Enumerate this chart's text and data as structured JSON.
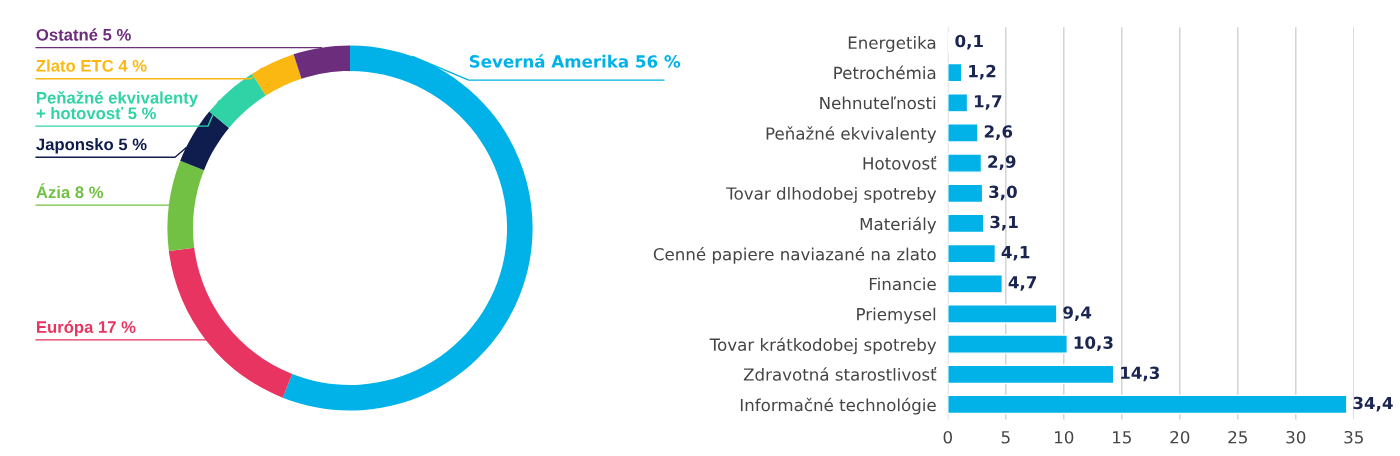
{
  "chart_data": [
    {
      "type": "donut",
      "categories": [
        "Severná Amerika",
        "Európa",
        "Ázia",
        "Japonsko",
        "Peňažné ekvivalenty\n+ hotovosť",
        "Zlato ETC",
        "Ostatné"
      ],
      "values": [
        56,
        17,
        8,
        5,
        5,
        4,
        5
      ],
      "value_labels": [
        "56 %",
        "17 %",
        "8 %",
        "5 %",
        "5 %",
        "4 %",
        "5 %"
      ],
      "colors": [
        "#00b2e7",
        "#e83460",
        "#72c144",
        "#0f1d4e",
        "#2fd3a6",
        "#fbb812",
        "#6c2d7c"
      ]
    },
    {
      "type": "bar",
      "orientation": "horizontal",
      "categories": [
        "Energetika",
        "Petrochémia",
        "Nehnuteľnosti",
        "Peňažné ekvivalenty",
        "Hotovosť",
        "Tovar dlhodobej spotreby",
        "Materiály",
        "Cenné papiere naviazané na zlato",
        "Financie",
        "Priemysel",
        "Tovar krátkodobej spotreby",
        "Zdravotná starostlivosť",
        "Informačné technológie"
      ],
      "values": [
        0.1,
        1.2,
        1.7,
        2.6,
        2.9,
        3.0,
        3.1,
        4.1,
        4.7,
        9.4,
        10.3,
        14.3,
        34.4
      ],
      "value_labels": [
        "0,1",
        "1,2",
        "1,7",
        "2,6",
        "2,9",
        "3,0",
        "3,1",
        "4,1",
        "4,7",
        "9,4",
        "10,3",
        "14,3",
        "34,4"
      ],
      "color": "#00b2e7",
      "xlim": [
        0,
        35
      ],
      "xticks": [
        0,
        5,
        10,
        15,
        20,
        25,
        30,
        35
      ],
      "grid": "x"
    }
  ]
}
